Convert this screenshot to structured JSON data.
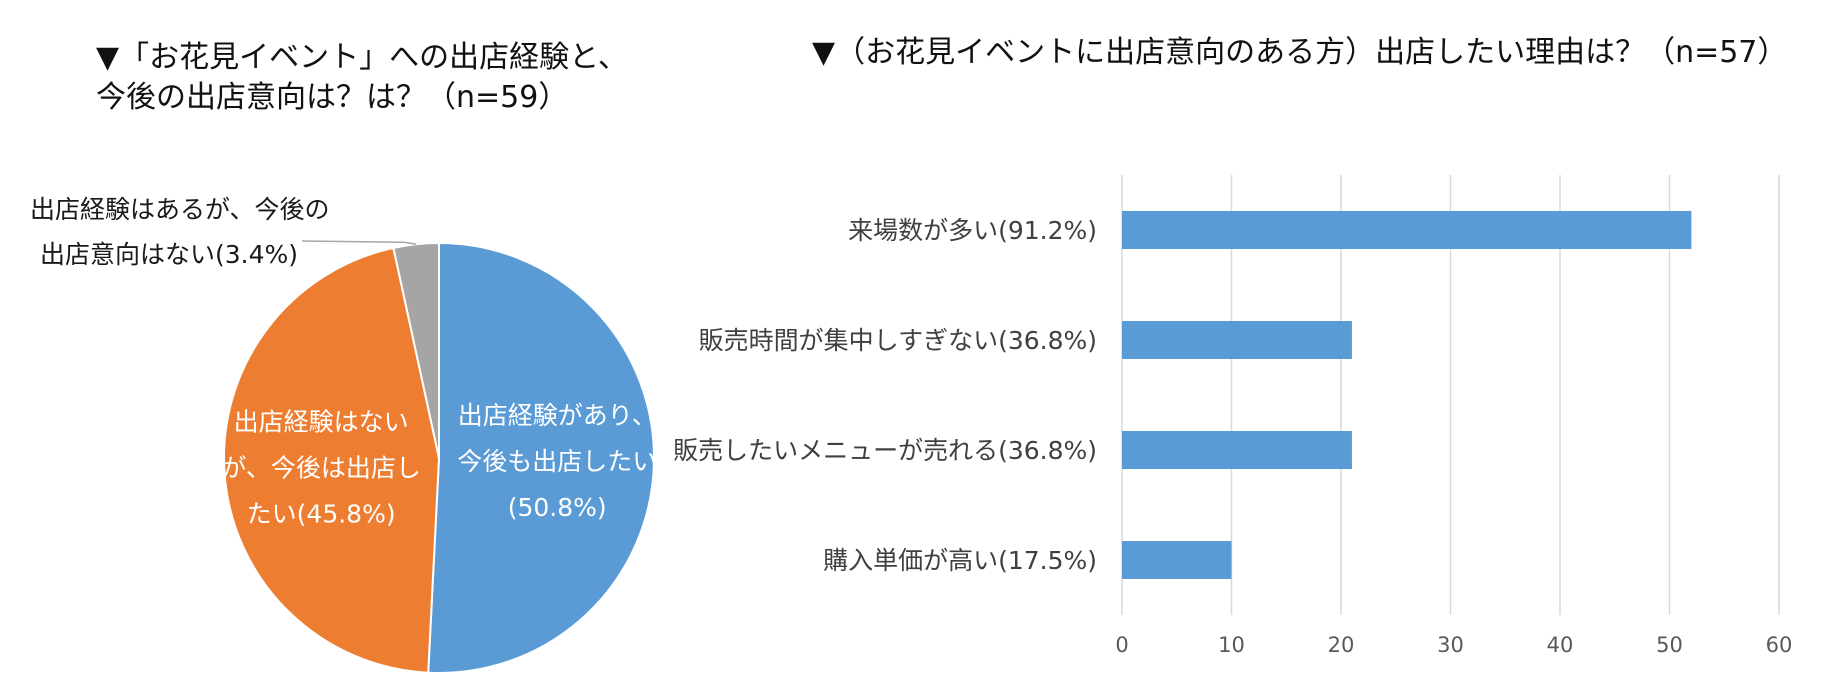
{
  "left_title": {
    "line1": "▼「お花見イベント」への出店経験と、",
    "line2": "今後の出店意向は？は？（n=59）"
  },
  "right_title": "▼（お花見イベントに出店意向のある方）出店したい理由は？（n=57）",
  "chart_data": [
    {
      "type": "pie",
      "title": "▼「お花見イベント」への出店経験と、今後の出店意向は？は？（n=59）",
      "slices": [
        {
          "label_lines": [
            "出店経験があり、",
            "今後も出店したい",
            "(50.8%)"
          ],
          "value": 50.8,
          "color": "#5B9BD5"
        },
        {
          "label_lines": [
            "出店経験はない",
            "が、今後は出店し",
            "たい(45.8%)"
          ],
          "value": 45.8,
          "color": "#ED7D31"
        },
        {
          "label_lines": [
            "出店経験はあるが、今後の",
            "出店意向はない(3.4%)"
          ],
          "value": 3.4,
          "color": "#A5A5A5"
        }
      ]
    },
    {
      "type": "bar",
      "orientation": "horizontal",
      "title": "▼（お花見イベントに出店意向のある方）出店したい理由は？（n=57）",
      "categories": [
        "来場数が多い(91.2%)",
        "販売時間が集中しすぎない(36.8%)",
        "販売したいメニューが売れる(36.8%)",
        "購入単価が高い(17.5%)"
      ],
      "values": [
        52,
        21,
        21,
        10
      ],
      "xlim": [
        0,
        60
      ],
      "xticks": [
        "0",
        "10",
        "20",
        "30",
        "40",
        "50",
        "60"
      ],
      "grid": true,
      "color": "#5B9BD5"
    }
  ]
}
